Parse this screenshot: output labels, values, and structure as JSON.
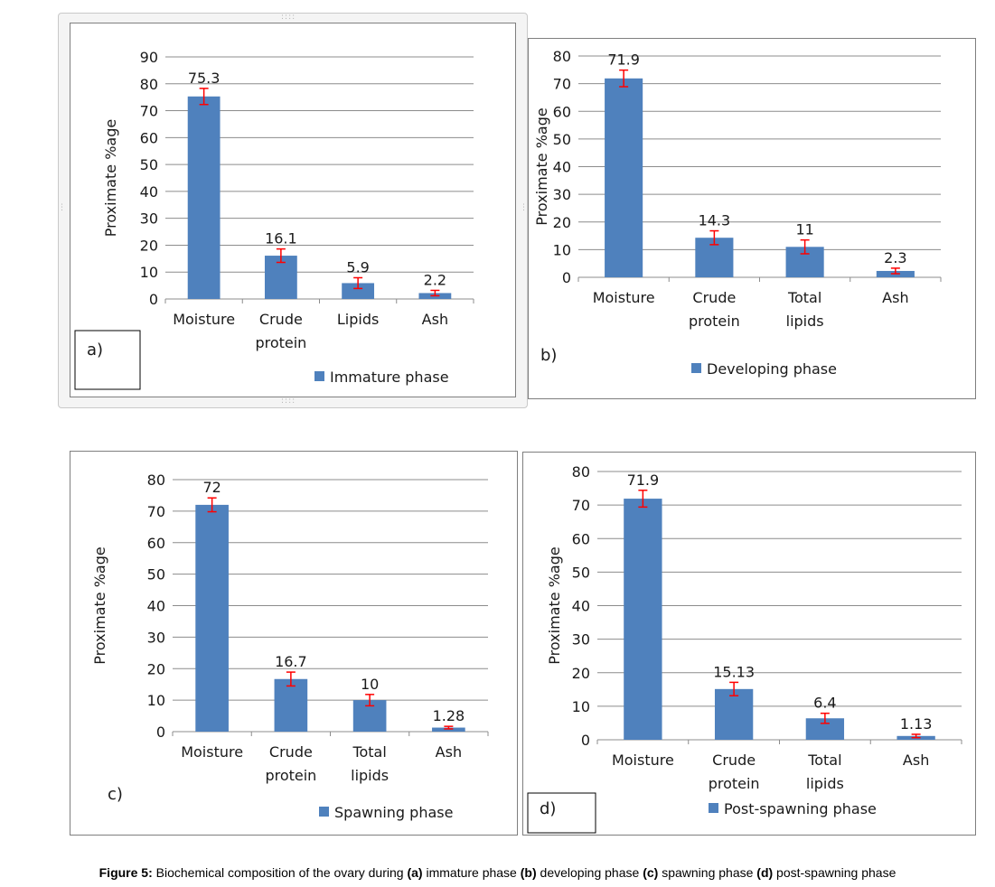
{
  "chart_data": [
    {
      "type": "bar",
      "panel_label": "a)",
      "categories": [
        [
          "Moisture"
        ],
        [
          "Crude",
          "protein"
        ],
        [
          "Lipids"
        ],
        [
          "Ash"
        ]
      ],
      "values": [
        75.3,
        16.1,
        5.9,
        2.2
      ],
      "value_labels": [
        "75.3",
        "16.1",
        "5.9",
        "2.2"
      ],
      "error": [
        3,
        2.5,
        2,
        1
      ],
      "ylabel": "Proximate %age",
      "ylim": [
        0,
        90
      ],
      "yticks": [
        0,
        10,
        20,
        30,
        40,
        50,
        60,
        70,
        80,
        90
      ],
      "legend": "Immature phase",
      "grid": true
    },
    {
      "type": "bar",
      "panel_label": "b)",
      "categories": [
        [
          "Moisture"
        ],
        [
          "Crude",
          "protein"
        ],
        [
          "Total",
          "lipids"
        ],
        [
          "Ash"
        ]
      ],
      "values": [
        71.9,
        14.3,
        11,
        2.3
      ],
      "value_labels": [
        "71.9",
        "14.3",
        "11",
        "2.3"
      ],
      "error": [
        3,
        2.5,
        2.5,
        1
      ],
      "ylabel": "Proximate %age",
      "ylim": [
        0,
        80
      ],
      "yticks": [
        0,
        10,
        20,
        30,
        40,
        50,
        60,
        70,
        80
      ],
      "legend": "Developing phase",
      "grid": true
    },
    {
      "type": "bar",
      "panel_label": "c)",
      "categories": [
        [
          "Moisture"
        ],
        [
          "Crude",
          "protein"
        ],
        [
          "Total",
          "lipids"
        ],
        [
          "Ash"
        ]
      ],
      "values": [
        72,
        16.7,
        10,
        1.28
      ],
      "value_labels": [
        "72",
        "16.7",
        "10",
        "1.28"
      ],
      "error": [
        2.2,
        2.2,
        1.8,
        0.4
      ],
      "ylabel": "Proximate %age",
      "ylim": [
        0,
        80
      ],
      "yticks": [
        0,
        10,
        20,
        30,
        40,
        50,
        60,
        70,
        80
      ],
      "legend": "Spawning phase",
      "grid": true
    },
    {
      "type": "bar",
      "panel_label": "d)",
      "categories": [
        [
          "Moisture"
        ],
        [
          "Crude",
          "protein"
        ],
        [
          "Total",
          "lipids"
        ],
        [
          "Ash"
        ]
      ],
      "values": [
        71.9,
        15.13,
        6.4,
        1.13
      ],
      "value_labels": [
        "71.9",
        "15.13",
        "6.4",
        "1.13"
      ],
      "error": [
        2.5,
        2,
        1.5,
        0.5
      ],
      "ylabel": "Proximate %age",
      "ylim": [
        0,
        80
      ],
      "yticks": [
        0,
        10,
        20,
        30,
        40,
        50,
        60,
        70,
        80
      ],
      "legend": "Post-spawning phase",
      "grid": true
    }
  ],
  "caption": {
    "bold_label": "Figure 5:",
    "parts": [
      {
        "bold": false,
        "text": " Biochemical composition of the ovary during "
      },
      {
        "bold": true,
        "text": "(a)"
      },
      {
        "bold": false,
        "text": " immature phase "
      },
      {
        "bold": true,
        "text": "(b)"
      },
      {
        "bold": false,
        "text": " developing phase "
      },
      {
        "bold": true,
        "text": "(c)"
      },
      {
        "bold": false,
        "text": " spawning phase "
      },
      {
        "bold": true,
        "text": "(d)"
      },
      {
        "bold": false,
        "text": " post-spawning phase"
      }
    ]
  },
  "colors": {
    "bar": "#4f81bd",
    "error_bar": "#ff0000",
    "grid": "#8c8c8c",
    "text": "#1a1a1a"
  }
}
